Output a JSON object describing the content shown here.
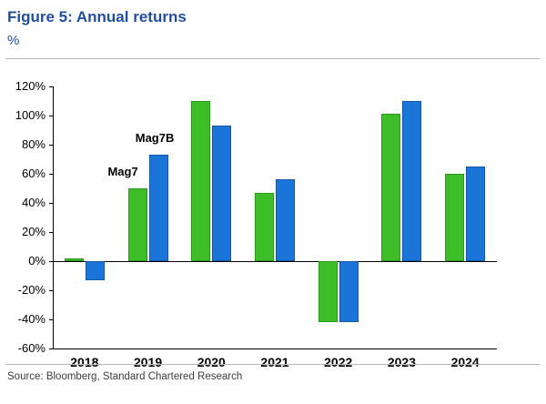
{
  "figure": {
    "title": "Figure 5: Annual returns",
    "unit": "%",
    "source": "Source: Bloomberg, Standard Chartered Research"
  },
  "chart_data": {
    "type": "bar",
    "title": "Figure 5: Annual returns",
    "ylabel": "%",
    "categories": [
      "2018",
      "2019",
      "2020",
      "2021",
      "2022",
      "2023",
      "2024"
    ],
    "series": [
      {
        "name": "Mag7",
        "color": "#3dbe29",
        "border_color": "#2a9a1d",
        "values": [
          2,
          50,
          110,
          47,
          -42,
          101,
          60
        ]
      },
      {
        "name": "Mag7B",
        "color": "#1b75d8",
        "border_color": "#1258a8",
        "values": [
          -13,
          73,
          93,
          56,
          -42,
          110,
          65
        ]
      }
    ],
    "ylim": [
      -60,
      120
    ],
    "ytick_step": 20,
    "ytick_labels": [
      "120%",
      "100%",
      "80%",
      "60%",
      "40%",
      "20%",
      "0%",
      "-20%",
      "-40%",
      "-60%"
    ],
    "grid": false,
    "legend_position": "none",
    "annotations": [
      {
        "text": "Mag7",
        "category_index": 1,
        "series_index": 0
      },
      {
        "text": "Mag7B",
        "category_index": 1,
        "series_index": 1
      }
    ]
  }
}
